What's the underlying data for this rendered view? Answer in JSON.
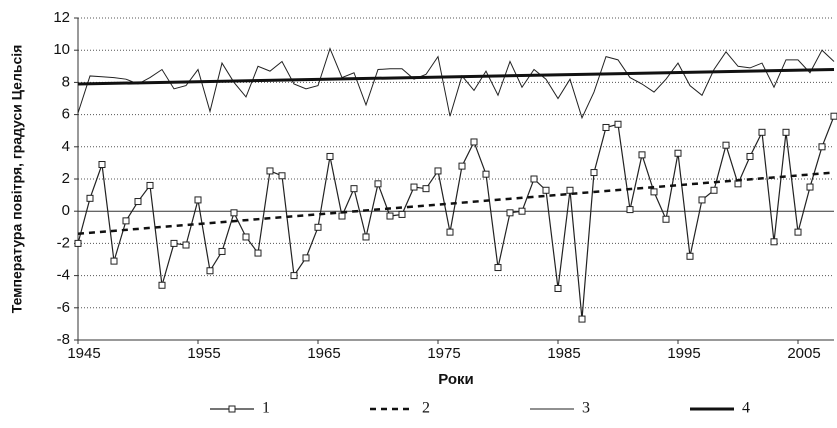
{
  "chart_data": {
    "type": "line",
    "y_label": "Температура повітря, градуси Цельсія",
    "x_label": "Роки",
    "x": [
      1945,
      1946,
      1947,
      1948,
      1949,
      1950,
      1951,
      1952,
      1953,
      1954,
      1955,
      1956,
      1957,
      1958,
      1959,
      1960,
      1961,
      1962,
      1963,
      1964,
      1965,
      1966,
      1967,
      1968,
      1969,
      1970,
      1971,
      1972,
      1973,
      1974,
      1975,
      1976,
      1977,
      1978,
      1979,
      1980,
      1981,
      1982,
      1983,
      1984,
      1985,
      1986,
      1987,
      1988,
      1989,
      1990,
      1991,
      1992,
      1993,
      1994,
      1995,
      1996,
      1997,
      1998,
      1999,
      2000,
      2001,
      2002,
      2003,
      2004,
      2005,
      2006,
      2007,
      2008
    ],
    "series": [
      {
        "name": "1",
        "color": "#222222",
        "width": 1.2,
        "marker": "square",
        "dash": false,
        "values": [
          -2,
          0.8,
          2.9,
          -3.1,
          -0.6,
          0.6,
          1.6,
          -4.6,
          -2,
          -2.1,
          0.7,
          -3.7,
          -2.5,
          -0.1,
          -1.6,
          -2.6,
          2.5,
          2.2,
          -4,
          -2.9,
          -1,
          3.4,
          -0.3,
          1.4,
          -1.6,
          1.7,
          -0.3,
          -0.2,
          1.5,
          1.4,
          2.5,
          -1.3,
          2.8,
          4.3,
          2.3,
          -3.5,
          -0.1,
          0,
          2,
          1.3,
          -4.8,
          1.3,
          -6.7,
          2.4,
          5.2,
          5.4,
          0.1,
          3.5,
          1.2,
          -0.5,
          3.6,
          -2.8,
          0.7,
          1.3,
          4.1,
          1.7,
          3.4,
          4.9,
          -1.9,
          4.9,
          -1.3,
          1.5,
          4,
          5.9
        ]
      },
      {
        "name": "2",
        "color": "#111111",
        "width": 2.5,
        "marker": "none",
        "dash": true,
        "x": [
          1945,
          2008
        ],
        "values": [
          -1.4,
          2.4
        ]
      },
      {
        "name": "3",
        "color": "#222222",
        "width": 1,
        "marker": "none",
        "dash": false,
        "values": [
          6.1,
          8.4,
          8.35,
          8.3,
          8.2,
          7.9,
          8.3,
          8.8,
          7.6,
          7.8,
          8.8,
          6.2,
          9.2,
          8.0,
          7.1,
          9.0,
          8.7,
          9.3,
          7.9,
          7.6,
          7.8,
          10.1,
          8.3,
          8.6,
          6.6,
          8.8,
          8.85,
          8.85,
          8.2,
          8.5,
          9.6,
          5.9,
          8.4,
          7.5,
          8.7,
          7.2,
          9.3,
          7.7,
          8.8,
          8.2,
          7.0,
          8.2,
          5.8,
          7.4,
          9.6,
          9.4,
          8.3,
          7.9,
          7.4,
          8.2,
          9.2,
          7.8,
          7.2,
          8.8,
          9.9,
          9.0,
          8.9,
          9.2,
          7.7,
          9.4,
          9.4,
          8.6,
          10.0,
          9.3
        ]
      },
      {
        "name": "4",
        "color": "#111111",
        "width": 3,
        "marker": "none",
        "dash": false,
        "x": [
          1945,
          2008
        ],
        "values": [
          7.9,
          8.8
        ]
      }
    ],
    "xlim": [
      1945,
      2008
    ],
    "xticks": [
      1945,
      1955,
      1965,
      1975,
      1985,
      1995,
      2005
    ],
    "ylim": [
      -8,
      12
    ],
    "yticks": [
      -8,
      -6,
      -4,
      -2,
      0,
      2,
      4,
      6,
      8,
      10,
      12
    ],
    "grid": true
  }
}
